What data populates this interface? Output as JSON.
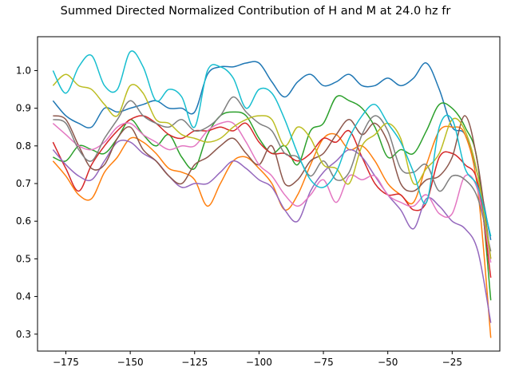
{
  "chart_data": {
    "type": "line",
    "title": "Summed Directed Normalized Contribution of H and M at 24.0 hz fr",
    "xlabel": "",
    "ylabel": "",
    "xlim": [
      -186,
      -6.5
    ],
    "ylim": [
      0.255,
      1.09
    ],
    "xticks": [
      -175,
      -150,
      -125,
      -100,
      -75,
      -50,
      -25
    ],
    "yticks": [
      0.3,
      0.4,
      0.5,
      0.6,
      0.7,
      0.8,
      0.9,
      1.0
    ],
    "xtick_labels": [
      "−175",
      "−150",
      "−125",
      "−100",
      "−75",
      "−50",
      "−25"
    ],
    "ytick_labels": [
      "0.3",
      "0.4",
      "0.5",
      "0.6",
      "0.7",
      "0.8",
      "0.9",
      "1.0"
    ],
    "grid": false,
    "legend": "none",
    "x": [
      -180,
      -175,
      -170,
      -165,
      -160,
      -155,
      -150,
      -145,
      -140,
      -135,
      -130,
      -125,
      -120,
      -115,
      -110,
      -105,
      -100,
      -95,
      -90,
      -85,
      -80,
      -75,
      -70,
      -65,
      -60,
      -55,
      -50,
      -45,
      -40,
      -35,
      -30,
      -25,
      -20,
      -15,
      -10
    ],
    "series": [
      {
        "color": "#1f77b4",
        "values": [
          0.92,
          0.88,
          0.86,
          0.85,
          0.9,
          0.89,
          0.9,
          0.91,
          0.92,
          0.9,
          0.9,
          0.89,
          0.99,
          1.01,
          1.01,
          1.02,
          1.02,
          0.97,
          0.93,
          0.97,
          0.99,
          0.96,
          0.97,
          0.99,
          0.96,
          0.96,
          0.98,
          0.96,
          0.98,
          1.02,
          0.95,
          0.85,
          0.83,
          0.72,
          0.55
        ]
      },
      {
        "color": "#ff7f0e",
        "values": [
          0.76,
          0.72,
          0.67,
          0.66,
          0.73,
          0.77,
          0.82,
          0.81,
          0.78,
          0.74,
          0.73,
          0.71,
          0.64,
          0.7,
          0.76,
          0.77,
          0.74,
          0.7,
          0.63,
          0.67,
          0.75,
          0.82,
          0.83,
          0.79,
          0.8,
          0.76,
          0.7,
          0.67,
          0.65,
          0.75,
          0.84,
          0.85,
          0.83,
          0.68,
          0.29
        ]
      },
      {
        "color": "#2ca02c",
        "values": [
          0.77,
          0.76,
          0.8,
          0.79,
          0.78,
          0.82,
          0.87,
          0.83,
          0.8,
          0.83,
          0.77,
          0.74,
          0.83,
          0.88,
          0.89,
          0.88,
          0.82,
          0.78,
          0.8,
          0.75,
          0.84,
          0.86,
          0.93,
          0.92,
          0.9,
          0.85,
          0.77,
          0.79,
          0.78,
          0.84,
          0.91,
          0.9,
          0.85,
          0.75,
          0.39
        ]
      },
      {
        "color": "#d62728",
        "values": [
          0.81,
          0.74,
          0.68,
          0.75,
          0.8,
          0.84,
          0.87,
          0.88,
          0.86,
          0.83,
          0.82,
          0.84,
          0.84,
          0.85,
          0.84,
          0.86,
          0.81,
          0.78,
          0.78,
          0.76,
          0.78,
          0.82,
          0.81,
          0.84,
          0.77,
          0.7,
          0.67,
          0.67,
          0.63,
          0.65,
          0.77,
          0.78,
          0.75,
          0.7,
          0.45
        ]
      },
      {
        "color": "#9467bd",
        "values": [
          0.79,
          0.75,
          0.72,
          0.71,
          0.76,
          0.81,
          0.81,
          0.78,
          0.76,
          0.72,
          0.69,
          0.7,
          0.7,
          0.73,
          0.76,
          0.74,
          0.71,
          0.69,
          0.63,
          0.6,
          0.68,
          0.73,
          0.76,
          0.79,
          0.77,
          0.72,
          0.67,
          0.63,
          0.58,
          0.66,
          0.64,
          0.6,
          0.58,
          0.52,
          0.33
        ]
      },
      {
        "color": "#8c564b",
        "values": [
          0.88,
          0.87,
          0.8,
          0.74,
          0.75,
          0.82,
          0.85,
          0.79,
          0.76,
          0.72,
          0.7,
          0.75,
          0.77,
          0.8,
          0.82,
          0.78,
          0.75,
          0.8,
          0.7,
          0.71,
          0.76,
          0.78,
          0.83,
          0.87,
          0.83,
          0.86,
          0.81,
          0.7,
          0.68,
          0.71,
          0.72,
          0.77,
          0.88,
          0.75,
          0.5
        ]
      },
      {
        "color": "#e377c2",
        "values": [
          0.86,
          0.83,
          0.8,
          0.79,
          0.81,
          0.85,
          0.86,
          0.83,
          0.81,
          0.79,
          0.8,
          0.8,
          0.84,
          0.86,
          0.86,
          0.81,
          0.75,
          0.72,
          0.67,
          0.64,
          0.67,
          0.71,
          0.65,
          0.72,
          0.71,
          0.72,
          0.67,
          0.65,
          0.64,
          0.67,
          0.62,
          0.62,
          0.72,
          0.68,
          0.49
        ]
      },
      {
        "color": "#7f7f7f",
        "values": [
          0.87,
          0.86,
          0.79,
          0.76,
          0.82,
          0.87,
          0.92,
          0.88,
          0.86,
          0.85,
          0.87,
          0.84,
          0.85,
          0.88,
          0.93,
          0.89,
          0.86,
          0.84,
          0.78,
          0.77,
          0.72,
          0.76,
          0.71,
          0.73,
          0.83,
          0.88,
          0.84,
          0.74,
          0.73,
          0.75,
          0.68,
          0.72,
          0.71,
          0.66,
          0.52
        ]
      },
      {
        "color": "#bcbd22",
        "values": [
          0.96,
          0.99,
          0.96,
          0.95,
          0.91,
          0.88,
          0.96,
          0.94,
          0.87,
          0.86,
          0.83,
          0.82,
          0.81,
          0.82,
          0.85,
          0.87,
          0.88,
          0.87,
          0.8,
          0.85,
          0.82,
          0.75,
          0.74,
          0.7,
          0.8,
          0.83,
          0.86,
          0.82,
          0.7,
          0.74,
          0.78,
          0.87,
          0.84,
          0.72,
          0.5
        ]
      },
      {
        "color": "#17becf",
        "values": [
          1.0,
          0.94,
          1.01,
          1.04,
          0.96,
          0.95,
          1.05,
          1.01,
          0.92,
          0.95,
          0.93,
          0.85,
          1.0,
          1.01,
          0.98,
          0.9,
          0.95,
          0.94,
          0.87,
          0.78,
          0.71,
          0.69,
          0.73,
          0.82,
          0.88,
          0.91,
          0.86,
          0.81,
          0.73,
          0.65,
          0.85,
          0.87,
          0.74,
          0.69,
          0.56
        ]
      }
    ]
  }
}
